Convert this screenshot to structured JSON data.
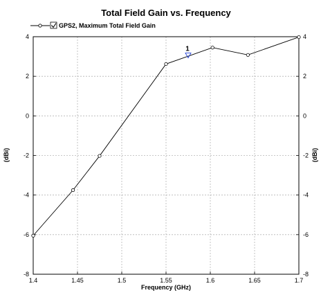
{
  "chart_data": {
    "type": "line",
    "title": "Total Field Gain vs. Frequency",
    "xlabel": "Frequency (GHz)",
    "ylabel": "(dBi)",
    "ylabel_right": "(dBi)",
    "xlim": [
      1.4,
      1.7
    ],
    "ylim": [
      -8,
      4
    ],
    "x_ticks": [
      "1.4",
      "1.45",
      "1.5",
      "1.55",
      "1.6",
      "1.65",
      "1.7"
    ],
    "y_ticks": [
      "4",
      "2",
      "0",
      "-2",
      "-4",
      "-6",
      "-8"
    ],
    "grid": true,
    "legend_position": "top-left",
    "series": [
      {
        "name": "GPS2, Maximum Total Field Gain",
        "color": "#000000",
        "marker": "circle",
        "x": [
          1.4,
          1.445,
          1.475,
          1.55,
          1.6025,
          1.6425,
          1.7
        ],
        "y": [
          -6.05,
          -3.75,
          -2.02,
          2.62,
          3.45,
          3.08,
          3.98
        ]
      }
    ],
    "annotations": [
      {
        "label": "1",
        "x": 1.575,
        "y": 3.0,
        "marker": "triangle-down",
        "color": "#1f3fd6"
      }
    ]
  }
}
